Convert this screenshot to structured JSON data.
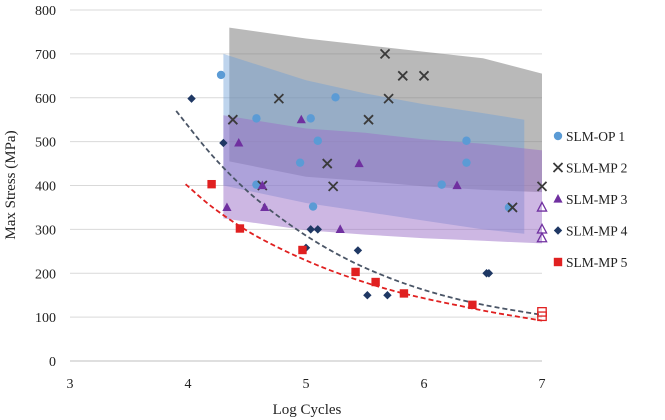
{
  "chart_data": {
    "type": "scatter",
    "title": "",
    "xlabel": "Log Cycles",
    "ylabel": "Max Stress (MPa)",
    "xlim": [
      3,
      7
    ],
    "ylim": [
      0,
      800
    ],
    "xticks": [
      "3",
      "4",
      "5",
      "6",
      "7"
    ],
    "yticks": [
      "0",
      "100",
      "200",
      "300",
      "400",
      "500",
      "600",
      "700",
      "800"
    ],
    "grid": "horizontal",
    "legend_position": "right",
    "series": [
      {
        "name": "SLM-OP 1",
        "marker": "circle",
        "color": "#5b9bd5",
        "points": [
          [
            4.28,
            652
          ],
          [
            4.58,
            553
          ],
          [
            4.58,
            402
          ],
          [
            4.95,
            452
          ],
          [
            5.04,
            553
          ],
          [
            5.06,
            352
          ],
          [
            5.1,
            502
          ],
          [
            5.25,
            601
          ],
          [
            6.15,
            402
          ],
          [
            6.36,
            502
          ],
          [
            6.36,
            452
          ],
          [
            6.72,
            350
          ]
        ]
      },
      {
        "name": "SLM-MP 2",
        "marker": "x",
        "color": "#3a3a3a",
        "points": [
          [
            4.38,
            550
          ],
          [
            4.63,
            400
          ],
          [
            4.77,
            598
          ],
          [
            5.18,
            450
          ],
          [
            5.23,
            398
          ],
          [
            5.53,
            550
          ],
          [
            5.67,
            700
          ],
          [
            5.7,
            598
          ],
          [
            5.82,
            650
          ],
          [
            6.0,
            650
          ],
          [
            6.75,
            350
          ],
          [
            7.0,
            398
          ]
        ]
      },
      {
        "name": "SLM-MP 3",
        "marker": "triangle",
        "color": "#7030a0",
        "points": [
          [
            4.33,
            350
          ],
          [
            4.43,
            497
          ],
          [
            4.63,
            400
          ],
          [
            4.65,
            350
          ],
          [
            4.96,
            550
          ],
          [
            5.29,
            300
          ],
          [
            5.45,
            450
          ],
          [
            6.28,
            400
          ],
          [
            7.0,
            350
          ],
          [
            7.0,
            300
          ],
          [
            7.0,
            280
          ]
        ]
      },
      {
        "name": "SLM-MP 4",
        "marker": "diamond",
        "color": "#1f3864",
        "points": [
          [
            4.03,
            598
          ],
          [
            4.3,
            497
          ],
          [
            5.0,
            258
          ],
          [
            5.04,
            300
          ],
          [
            5.1,
            300
          ],
          [
            5.44,
            252
          ],
          [
            5.52,
            150
          ],
          [
            5.69,
            150
          ],
          [
            6.53,
            200
          ],
          [
            6.55,
            200
          ]
        ]
      },
      {
        "name": "SLM-MP 5",
        "marker": "square",
        "color": "#e02020",
        "points": [
          [
            4.2,
            403
          ],
          [
            4.44,
            302
          ],
          [
            4.97,
            253
          ],
          [
            5.42,
            203
          ],
          [
            5.59,
            180
          ],
          [
            5.83,
            154
          ],
          [
            6.41,
            128
          ],
          [
            7.0,
            112
          ],
          [
            7.0,
            102
          ]
        ]
      }
    ],
    "trendlines": [
      {
        "name": "SLM-MP 4 fit",
        "color": "#4a5566",
        "style": "dashed",
        "x": [
          3.9,
          4.2,
          4.5,
          4.8,
          5.1,
          5.4,
          5.7,
          6.0,
          6.3,
          6.6,
          7.0
        ],
        "y": [
          570,
          470,
          388,
          323,
          269,
          225,
          190,
          162,
          140,
          123,
          105
        ]
      },
      {
        "name": "SLM-MP 5 fit",
        "color": "#e02020",
        "style": "dashed",
        "x": [
          3.98,
          4.2,
          4.5,
          4.8,
          5.1,
          5.4,
          5.7,
          6.0,
          6.3,
          6.6,
          7.0
        ],
        "y": [
          403,
          352,
          297,
          254,
          218,
          188,
          163,
          143,
          126,
          110,
          92
        ]
      }
    ],
    "bands": [
      {
        "name": "SLM-MP 2 band",
        "color": "#7f7f7f",
        "opacity": 0.55,
        "x": [
          4.35,
          5.0,
          5.5,
          6.0,
          6.5,
          7.0
        ],
        "upper": [
          760,
          735,
          720,
          705,
          690,
          655
        ],
        "lower": [
          455,
          420,
          410,
          398,
          390,
          385
        ]
      },
      {
        "name": "SLM-OP 1 band",
        "color": "#6f9fd8",
        "opacity": 0.45,
        "x": [
          4.3,
          5.0,
          5.5,
          6.0,
          6.5,
          6.85
        ],
        "upper": [
          700,
          640,
          610,
          585,
          565,
          550
        ],
        "lower": [
          400,
          360,
          340,
          320,
          300,
          290
        ]
      },
      {
        "name": "SLM-MP 3 band",
        "color": "#9b6fc8",
        "opacity": 0.5,
        "x": [
          4.3,
          5.0,
          5.5,
          6.0,
          6.5,
          7.0
        ],
        "upper": [
          560,
          530,
          520,
          505,
          495,
          480
        ],
        "lower": [
          325,
          298,
          288,
          280,
          274,
          268
        ]
      }
    ]
  }
}
